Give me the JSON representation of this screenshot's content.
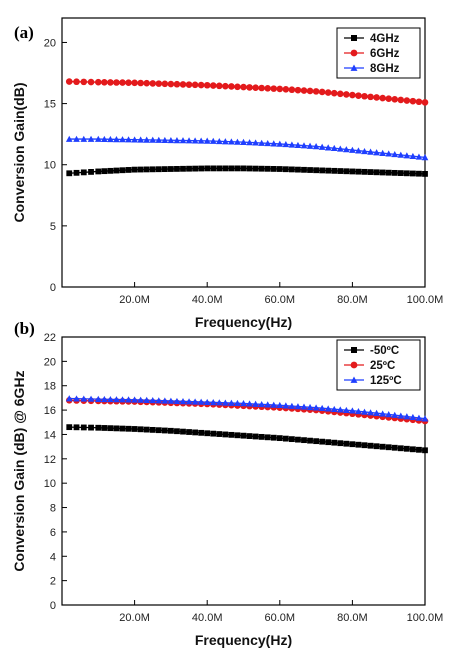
{
  "chart_data": [
    {
      "panel": "(a)",
      "type": "scatter",
      "xlabel": "Frequency(Hz)",
      "ylabel": "Conversion Gain(dB)",
      "xlim": [
        0,
        100
      ],
      "ylim": [
        0,
        22
      ],
      "xticks": [
        20,
        40,
        60,
        80,
        100
      ],
      "xtick_labels": [
        "20.0M",
        "40.0M",
        "60.0M",
        "80.0M",
        "100.0M"
      ],
      "yticks": [
        0,
        5,
        10,
        15,
        20
      ],
      "ytick_labels": [
        "0",
        "5",
        "10",
        "15",
        "20"
      ],
      "x": [
        2,
        10,
        20,
        30,
        40,
        50,
        60,
        70,
        80,
        90,
        100
      ],
      "legend_position": "top-right",
      "series": [
        {
          "name": "4GHz",
          "marker": "square",
          "color": "#000000",
          "values": [
            9.3,
            9.45,
            9.6,
            9.65,
            9.7,
            9.7,
            9.65,
            9.55,
            9.45,
            9.35,
            9.25
          ]
        },
        {
          "name": "6GHz",
          "marker": "circle",
          "color": "#e31a1c",
          "values": [
            16.8,
            16.75,
            16.7,
            16.6,
            16.5,
            16.35,
            16.2,
            16.0,
            15.7,
            15.4,
            15.1
          ]
        },
        {
          "name": "8GHz",
          "marker": "triangle",
          "color": "#1f3fff",
          "values": [
            12.1,
            12.1,
            12.05,
            12.0,
            11.95,
            11.85,
            11.7,
            11.5,
            11.2,
            10.9,
            10.6
          ]
        }
      ]
    },
    {
      "panel": "(b)",
      "type": "scatter",
      "xlabel": "Frequency(Hz)",
      "ylabel": "Conversion Gain (dB) @ 6GHz",
      "xlim": [
        0,
        100
      ],
      "ylim": [
        0,
        22
      ],
      "xticks": [
        20,
        40,
        60,
        80,
        100
      ],
      "xtick_labels": [
        "20.0M",
        "40.0M",
        "60.0M",
        "80.0M",
        "100.0M"
      ],
      "yticks": [
        0,
        2,
        4,
        6,
        8,
        10,
        12,
        14,
        16,
        18,
        20,
        22
      ],
      "ytick_labels": [
        "0",
        "2",
        "4",
        "6",
        "8",
        "10",
        "12",
        "14",
        "16",
        "18",
        "20",
        "22"
      ],
      "x": [
        2,
        10,
        20,
        30,
        40,
        50,
        60,
        70,
        80,
        90,
        100
      ],
      "legend_position": "top-right",
      "series": [
        {
          "name": "-50ºC",
          "marker": "square",
          "color": "#000000",
          "values": [
            14.6,
            14.55,
            14.45,
            14.3,
            14.1,
            13.9,
            13.7,
            13.45,
            13.2,
            12.95,
            12.7
          ]
        },
        {
          "name": "25ºC",
          "marker": "circle",
          "color": "#e31a1c",
          "values": [
            16.8,
            16.75,
            16.7,
            16.6,
            16.5,
            16.35,
            16.2,
            16.0,
            15.7,
            15.4,
            15.1
          ]
        },
        {
          "name": "125ºC",
          "marker": "triangle",
          "color": "#1f3fff",
          "values": [
            16.95,
            16.9,
            16.85,
            16.75,
            16.65,
            16.55,
            16.4,
            16.2,
            15.95,
            15.65,
            15.3
          ]
        }
      ]
    }
  ]
}
